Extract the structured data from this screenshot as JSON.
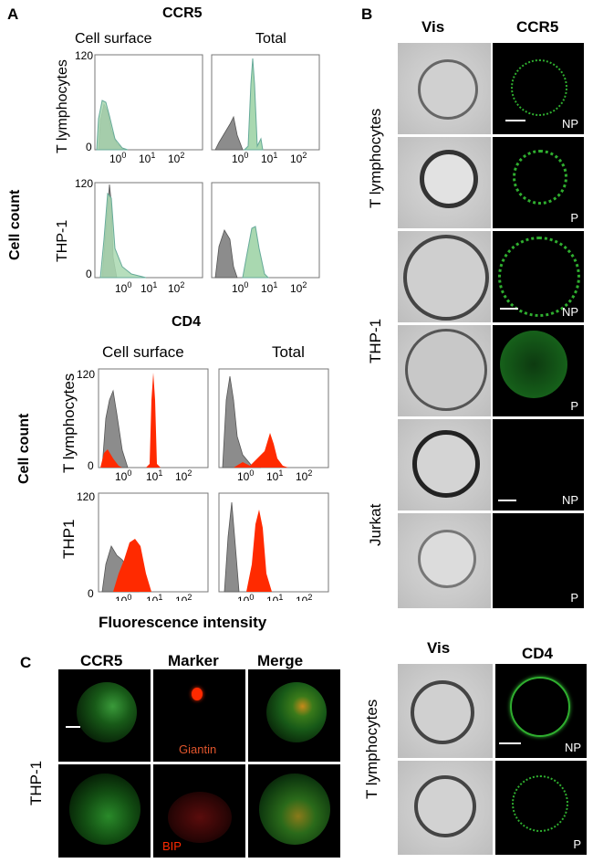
{
  "panelA": {
    "letter": "A",
    "ccr5_title": "CCR5",
    "cd4_title": "CD4",
    "cell_surface": "Cell surface",
    "total": "Total",
    "cell_count": "Cell count",
    "row_t": "T  lymphocytes",
    "row_thp1": "THP-1",
    "row_thp1_cd4": "THP1",
    "y_max": "120",
    "y_min": "0",
    "x_ticks": [
      "10",
      "10",
      "10"
    ],
    "x_exps": [
      "0",
      "1",
      "2"
    ],
    "xlabel": "Fluorescence intensity"
  },
  "panelB": {
    "letter": "B",
    "vis": "Vis",
    "ccr5": "CCR5",
    "cd4": "CD4",
    "row_t": "T lymphocytes",
    "row_thp1": "THP-1",
    "row_jurkat": "Jurkat",
    "row_t2": "T lymphocytes",
    "np": "NP",
    "p": "P"
  },
  "panelC": {
    "letter": "C",
    "ccr5": "CCR5",
    "marker": "Marker",
    "merge": "Merge",
    "row": "THP-1",
    "giantin": "Giantin",
    "bip": "BIP"
  },
  "colors": {
    "green_fill": "#a9d8b0",
    "gray_fill": "#8c8c8c",
    "red_fill": "#ff2a00",
    "fluor_green": "#2fae2f"
  }
}
